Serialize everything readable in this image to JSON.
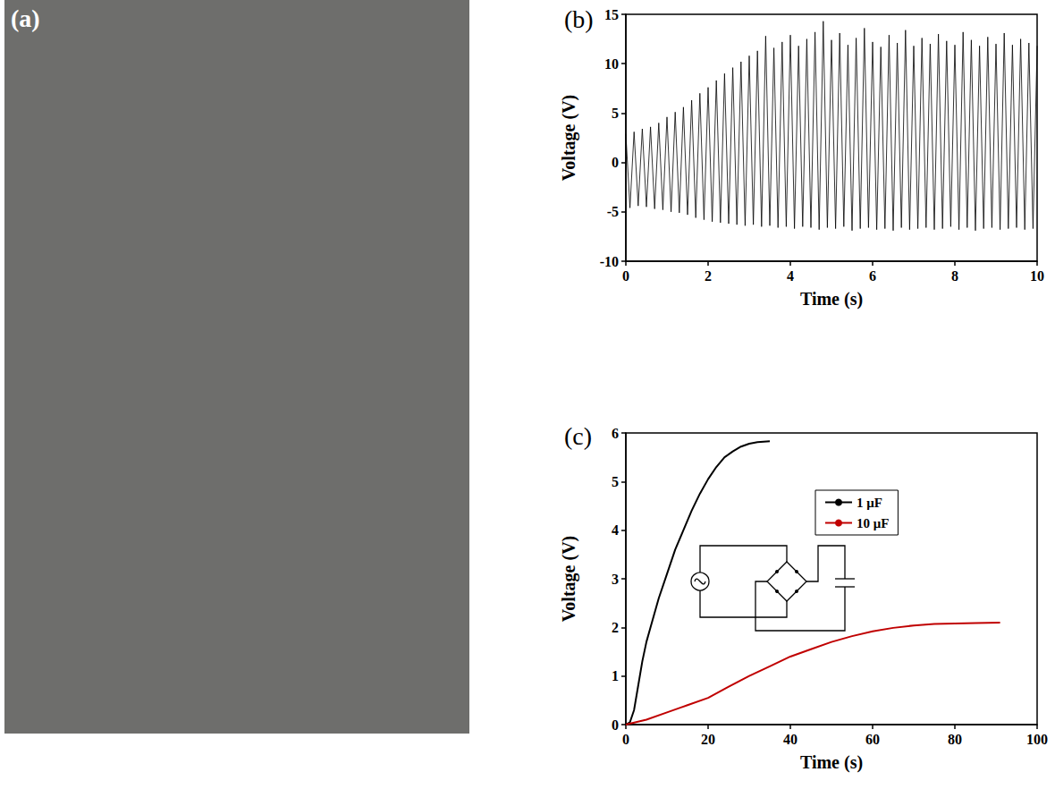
{
  "image": {
    "title": "(a)"
  },
  "chart_data": [
    {
      "type": "line",
      "title": "(b)",
      "xlabel": "Time (s)",
      "ylabel": "Voltage (V)",
      "x": [
        0,
        0.1,
        0.2,
        0.3,
        0.4,
        0.5,
        0.6,
        0.7,
        0.8,
        0.9,
        1.0,
        1.1,
        1.2,
        1.3,
        1.4,
        1.5,
        1.6,
        1.7,
        1.8,
        1.9,
        2.0,
        2.1,
        2.2,
        2.3,
        2.4,
        2.5,
        2.6,
        2.7,
        2.8,
        2.9,
        3.0,
        3.1,
        3.2,
        3.3,
        3.4,
        3.5,
        3.6,
        3.7,
        3.8,
        3.9,
        4.0,
        4.1,
        4.2,
        4.3,
        4.4,
        4.5,
        4.6,
        4.7,
        4.8,
        4.9,
        5.0,
        5.1,
        5.2,
        5.3,
        5.4,
        5.5,
        5.6,
        5.7,
        5.8,
        5.9,
        6.0,
        6.1,
        6.2,
        6.3,
        6.4,
        6.5,
        6.6,
        6.7,
        6.8,
        6.9,
        7.0,
        7.1,
        7.2,
        7.3,
        7.4,
        7.5,
        7.6,
        7.7,
        7.8,
        7.9,
        8.0,
        8.1,
        8.2,
        8.3,
        8.4,
        8.5,
        8.6,
        8.7,
        8.8,
        8.9,
        9.0,
        9.1,
        9.2,
        9.3,
        9.4,
        9.5,
        9.6,
        9.7,
        9.8,
        9.9,
        10.0
      ],
      "values": [
        2.9,
        -4.6,
        3.1,
        -4.4,
        3.4,
        -4.5,
        3.6,
        -4.7,
        4.0,
        -4.8,
        4.6,
        -5.0,
        5.1,
        -5.1,
        5.6,
        -5.3,
        6.3,
        -5.6,
        7.0,
        -5.8,
        7.6,
        -6.0,
        8.3,
        -6.1,
        9.0,
        -6.2,
        9.6,
        -6.3,
        10.2,
        -6.4,
        10.8,
        -6.3,
        11.3,
        -6.5,
        12.8,
        -6.4,
        11.6,
        -6.6,
        12.2,
        -6.5,
        12.9,
        -6.7,
        11.8,
        -6.5,
        12.5,
        -6.6,
        13.2,
        -6.8,
        14.3,
        -6.6,
        12.4,
        -6.7,
        13.1,
        -6.5,
        11.9,
        -6.9,
        12.6,
        -6.7,
        13.6,
        -6.6,
        12.2,
        -6.8,
        11.7,
        -6.7,
        12.9,
        -6.9,
        12.1,
        -6.6,
        13.4,
        -6.8,
        11.8,
        -6.7,
        12.6,
        -6.6,
        12.0,
        -6.8,
        13.0,
        -6.7,
        12.3,
        -6.5,
        11.9,
        -6.8,
        13.2,
        -6.6,
        12.4,
        -6.9,
        11.8,
        -6.7,
        12.7,
        -6.6,
        12.0,
        -6.8,
        13.1,
        -6.7,
        11.9,
        -6.6,
        12.5,
        -6.8,
        12.1,
        -6.7,
        11.8
      ],
      "color": "#000000",
      "xlim": [
        0,
        10
      ],
      "xticks": [
        0,
        2,
        4,
        6,
        8,
        10
      ],
      "ylim": [
        -10,
        15
      ],
      "yticks": [
        -10,
        -5,
        0,
        5,
        10,
        15
      ],
      "grid": false
    },
    {
      "type": "line",
      "title": "(c)",
      "xlabel": "Time (s)",
      "ylabel": "Voltage (V)",
      "series": [
        {
          "name": "1 μF",
          "color": "#000000",
          "x": [
            0,
            1,
            2,
            3,
            4,
            5,
            6,
            8,
            10,
            12,
            14,
            16,
            18,
            20,
            22,
            24,
            26,
            28,
            30,
            32,
            35
          ],
          "values": [
            0,
            0.05,
            0.3,
            0.8,
            1.3,
            1.7,
            2.0,
            2.6,
            3.1,
            3.6,
            4.0,
            4.4,
            4.75,
            5.05,
            5.3,
            5.5,
            5.62,
            5.72,
            5.78,
            5.81,
            5.83
          ]
        },
        {
          "name": "10 μF",
          "color": "#c00000",
          "x": [
            0,
            5,
            10,
            15,
            20,
            25,
            30,
            35,
            40,
            45,
            50,
            55,
            60,
            65,
            70,
            75,
            80,
            85,
            91
          ],
          "values": [
            0,
            0.1,
            0.25,
            0.4,
            0.55,
            0.78,
            1.0,
            1.2,
            1.4,
            1.55,
            1.7,
            1.82,
            1.92,
            1.99,
            2.04,
            2.07,
            2.08,
            2.09,
            2.1
          ]
        }
      ],
      "xlim": [
        0,
        100
      ],
      "xticks": [
        0,
        20,
        40,
        60,
        80,
        100
      ],
      "ylim": [
        0,
        6
      ],
      "yticks": [
        0,
        1,
        2,
        3,
        4,
        5,
        6
      ],
      "grid": false,
      "legend": "upper right"
    }
  ]
}
